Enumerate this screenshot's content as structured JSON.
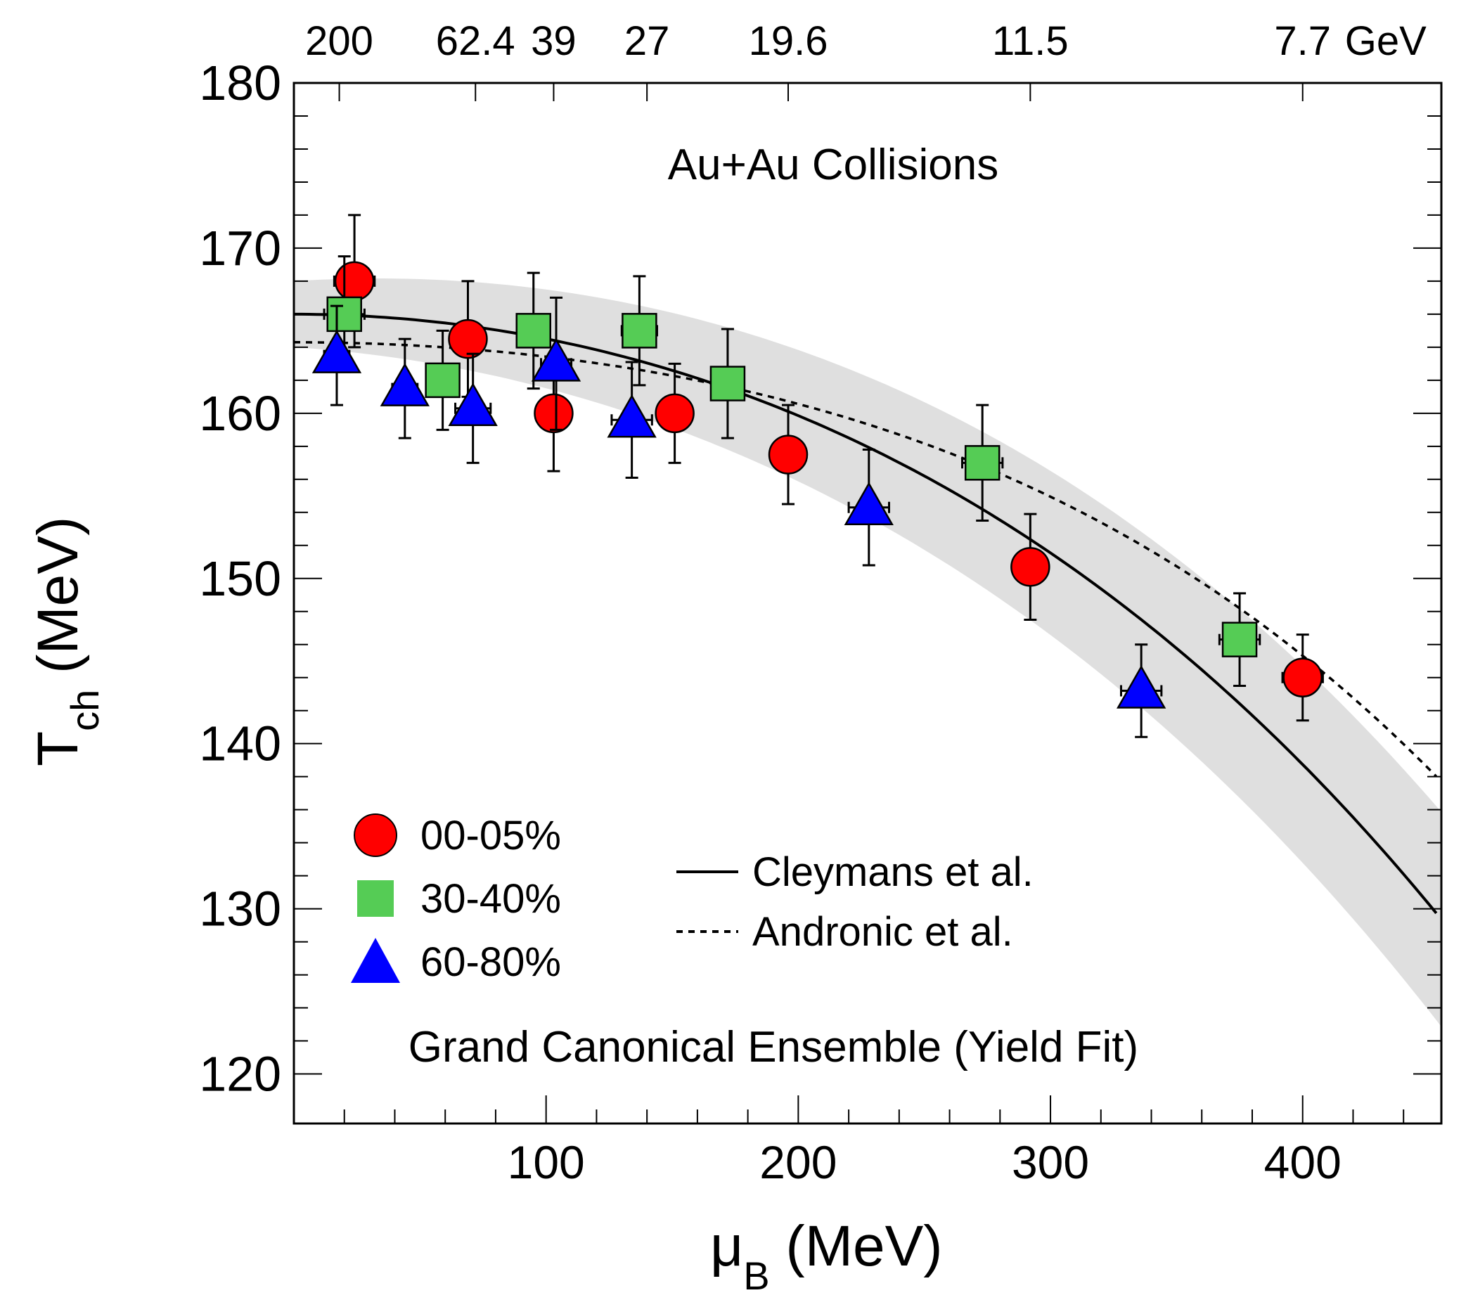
{
  "chart_data": {
    "type": "scatter",
    "title": "Au+Au Collisions",
    "annotation": "Grand Canonical Ensemble (Yield Fit)",
    "xlabel": {
      "main": "μ",
      "sub": "B",
      "unit": " (MeV)"
    },
    "ylabel": {
      "main": "T",
      "sub": "ch",
      "unit": " (MeV)"
    },
    "xlim": [
      0,
      455
    ],
    "ylim": [
      117,
      180
    ],
    "x_ticks": [
      100,
      200,
      300,
      400
    ],
    "y_ticks": [
      120,
      130,
      140,
      150,
      160,
      170,
      180
    ],
    "top_axis": {
      "unit": "GeV",
      "labels": [
        {
          "text": "200",
          "mu": 18
        },
        {
          "text": "62.4",
          "mu": 72
        },
        {
          "text": "39",
          "mu": 103
        },
        {
          "text": "27",
          "mu": 140
        },
        {
          "text": "19.6",
          "mu": 196
        },
        {
          "text": "11.5",
          "mu": 292
        },
        {
          "text": "7.7",
          "mu": 400
        }
      ]
    },
    "series": [
      {
        "name": "00-05%",
        "marker": "circle",
        "color": "#ff0000",
        "points": [
          {
            "x": 24,
            "y": 168.0,
            "xerr": 8,
            "yerr": 4.0
          },
          {
            "x": 69,
            "y": 164.5,
            "xerr": 7,
            "yerr": 3.5
          },
          {
            "x": 103,
            "y": 160.0,
            "xerr": 6,
            "yerr": 3.5
          },
          {
            "x": 151,
            "y": 160.0,
            "xerr": 5,
            "yerr": 3.0
          },
          {
            "x": 196,
            "y": 157.5,
            "xerr": 6,
            "yerr": 3.0
          },
          {
            "x": 292,
            "y": 150.7,
            "xerr": 7,
            "yerr": 3.2
          },
          {
            "x": 400,
            "y": 144.0,
            "xerr": 8,
            "yerr": 2.6
          }
        ]
      },
      {
        "name": "30-40%",
        "marker": "square",
        "color": "#55cc55",
        "points": [
          {
            "x": 20,
            "y": 166.0,
            "xerr": 8,
            "yerr": 3.5
          },
          {
            "x": 59,
            "y": 162.0,
            "xerr": 6,
            "yerr": 3.0
          },
          {
            "x": 95,
            "y": 165.0,
            "xerr": 5,
            "yerr": 3.5
          },
          {
            "x": 137,
            "y": 165.0,
            "xerr": 7,
            "yerr": 3.3
          },
          {
            "x": 172,
            "y": 161.8,
            "xerr": 5,
            "yerr": 3.3
          },
          {
            "x": 273,
            "y": 157.0,
            "xerr": 8,
            "yerr": 3.5
          },
          {
            "x": 375,
            "y": 146.3,
            "xerr": 8,
            "yerr": 2.8
          }
        ]
      },
      {
        "name": "60-80%",
        "marker": "triangle",
        "color": "#0000ff",
        "points": [
          {
            "x": 17,
            "y": 163.5,
            "xerr": 5,
            "yerr": 3.0
          },
          {
            "x": 44,
            "y": 161.5,
            "xerr": 5,
            "yerr": 3.0
          },
          {
            "x": 71,
            "y": 160.3,
            "xerr": 7,
            "yerr": 3.3
          },
          {
            "x": 104,
            "y": 163.0,
            "xerr": 6,
            "yerr": 4.0
          },
          {
            "x": 134,
            "y": 159.6,
            "xerr": 8,
            "yerr": 3.5
          },
          {
            "x": 228,
            "y": 154.3,
            "xerr": 8,
            "yerr": 3.5
          },
          {
            "x": 336,
            "y": 143.2,
            "xerr": 8,
            "yerr": 2.8
          }
        ]
      }
    ],
    "curves": [
      {
        "name": "Cleymans et al.",
        "style": "solid",
        "T0": 166,
        "c2": 0.000148,
        "c4": 1.4e-10
      },
      {
        "name": "Andronic et al.",
        "style": "dashed",
        "T0": 164.3,
        "c2": 8.5e-05,
        "c4": 2.1e-10
      }
    ],
    "band": {
      "style": "shaded",
      "half_width_at_0": 2,
      "half_width_at_max": 6.5
    },
    "legend_markers": [
      "00-05%",
      "30-40%",
      "60-80%"
    ],
    "legend_lines": [
      "Cleymans et al.",
      "Andronic et al."
    ]
  }
}
